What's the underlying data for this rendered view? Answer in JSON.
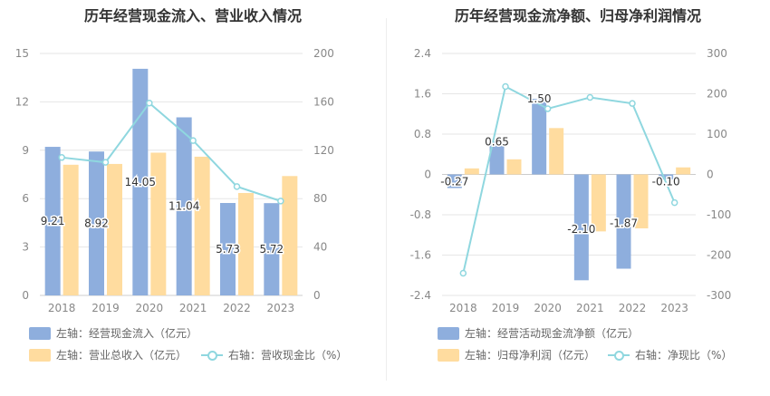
{
  "charts": {
    "left": {
      "title": "历年经营现金流入、营业收入情况",
      "legend": [
        {
          "label": "左轴：经营现金流入（亿元）",
          "color": "#8eaedd",
          "kind": "bar"
        },
        {
          "label": "左轴：营业总收入（亿元）",
          "color": "#ffdc9f",
          "kind": "bar"
        },
        {
          "label": "右轴：营收现金比（%）",
          "color": "#8fd7df",
          "kind": "line"
        }
      ]
    },
    "right": {
      "title": "历年经营现金流净额、归母净利润情况",
      "legend": [
        {
          "label": "左轴：经营活动现金流净额（亿元）",
          "color": "#8eaedd",
          "kind": "bar"
        },
        {
          "label": "左轴：归母净利润（亿元）",
          "color": "#ffdc9f",
          "kind": "bar"
        },
        {
          "label": "右轴：净现比（%）",
          "color": "#8fd7df",
          "kind": "line"
        }
      ]
    }
  },
  "chart_data": [
    {
      "type": "bar",
      "title": "历年经营现金流入、营业收入情况",
      "categories": [
        "2018",
        "2019",
        "2020",
        "2021",
        "2022",
        "2023"
      ],
      "y_left": {
        "ticks": [
          "0",
          "3",
          "6",
          "9",
          "12",
          "15"
        ],
        "range": [
          0,
          15
        ]
      },
      "y_right": {
        "ticks": [
          "0",
          "40",
          "80",
          "120",
          "160",
          "200"
        ],
        "range": [
          0,
          200
        ]
      },
      "series": [
        {
          "name": "左轴：经营现金流入（亿元）",
          "axis": "left",
          "type": "bar",
          "color": "#8eaedd",
          "values": [
            9.21,
            8.92,
            14.05,
            11.04,
            5.73,
            5.72
          ],
          "labels": [
            "9.21",
            "8.92",
            "14.05",
            "11.04",
            "5.73",
            "5.72"
          ]
        },
        {
          "name": "左轴：营业总收入（亿元）",
          "axis": "left",
          "type": "bar",
          "color": "#ffdc9f",
          "values": [
            8.1,
            8.15,
            8.85,
            8.6,
            6.35,
            7.4
          ]
        },
        {
          "name": "右轴：营收现金比（%）",
          "axis": "right",
          "type": "line",
          "color": "#8fd7df",
          "values": [
            114,
            110,
            159,
            128,
            90,
            78
          ]
        }
      ]
    },
    {
      "type": "bar",
      "title": "历年经营现金流净额、归母净利润情况",
      "categories": [
        "2018",
        "2019",
        "2020",
        "2021",
        "2022",
        "2023"
      ],
      "y_left": {
        "ticks": [
          "-2.4",
          "-1.6",
          "-0.8",
          "0",
          "0.8",
          "1.6",
          "2.4"
        ],
        "range": [
          -2.4,
          2.4
        ]
      },
      "y_right": {
        "ticks": [
          "-300",
          "-200",
          "-100",
          "0",
          "100",
          "200",
          "300"
        ],
        "range": [
          -300,
          300
        ]
      },
      "series": [
        {
          "name": "左轴：经营活动现金流净额（亿元）",
          "axis": "left",
          "type": "bar",
          "color": "#8eaedd",
          "values": [
            -0.27,
            0.65,
            1.5,
            -2.1,
            -1.87,
            -0.1
          ],
          "labels": [
            "-0.27",
            "0.65",
            "1.50",
            "-2.10",
            "-1.87",
            "-0.10"
          ]
        },
        {
          "name": "左轴：归母净利润（亿元）",
          "axis": "left",
          "type": "bar",
          "color": "#ffdc9f",
          "values": [
            0.12,
            0.3,
            0.92,
            -1.13,
            -1.07,
            0.14
          ]
        },
        {
          "name": "右轴：净现比（%）",
          "axis": "right",
          "type": "line",
          "color": "#8fd7df",
          "values": [
            -245,
            218,
            163,
            191,
            176,
            -70
          ]
        }
      ]
    }
  ]
}
